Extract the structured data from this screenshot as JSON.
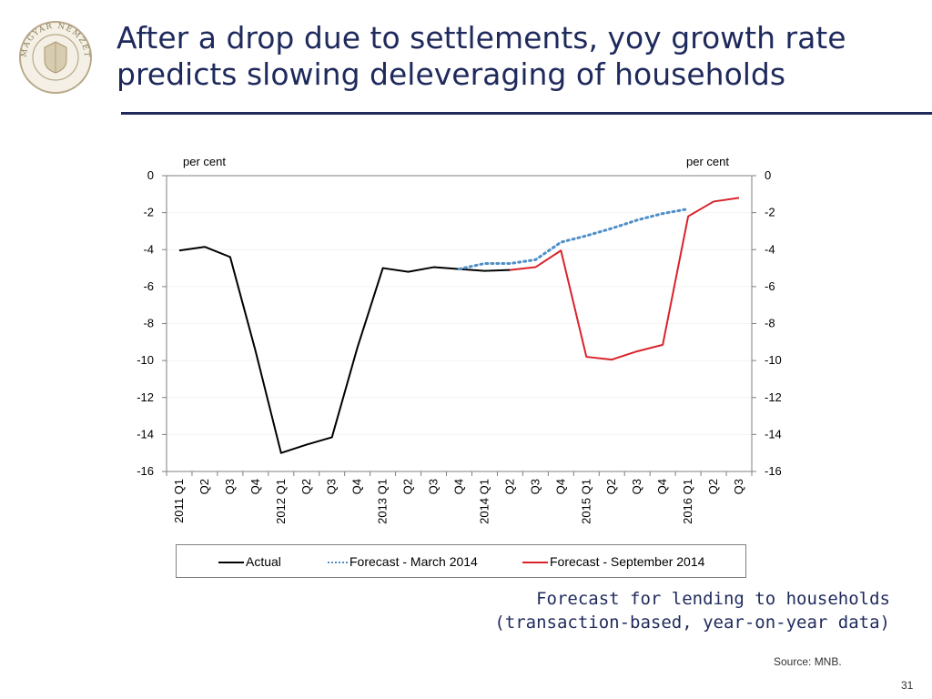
{
  "slide": {
    "title_line1": "After a drop due to settlements, yoy growth rate",
    "title_line2": "predicts slowing deleveraging of households",
    "caption_line1": "Forecast for lending to households",
    "caption_line2": "(transaction-based, year-on-year data)",
    "source": "Source: MNB.",
    "page_number": "31",
    "logo_text": "MAGYAR NEMZETI BANK",
    "colors": {
      "title": "#1f2a5c",
      "actual": "#000000",
      "forecast_march": "#4f8fc8",
      "forecast_september": "#d9232b"
    }
  },
  "chart_data": {
    "type": "line",
    "left_unit": "per cent",
    "right_unit": "per cent",
    "ylim": [
      -16,
      0
    ],
    "yticks": [
      0,
      -2,
      -4,
      -6,
      -8,
      -10,
      -12,
      -14,
      -16
    ],
    "categories": [
      "2011 Q1",
      "Q2",
      "Q3",
      "Q4",
      "2012 Q1",
      "Q2",
      "Q3",
      "Q4",
      "2013 Q1",
      "Q2",
      "Q3",
      "Q4",
      "2014 Q1",
      "Q2",
      "Q3",
      "Q4",
      "2015 Q1",
      "Q2",
      "Q3",
      "Q4",
      "2016 Q1",
      "Q2",
      "Q3"
    ],
    "series": [
      {
        "name": "Actual",
        "style": "solid",
        "color": "#000000",
        "values": [
          -4.05,
          -3.85,
          -4.4,
          -9.5,
          -15.0,
          -14.55,
          -14.15,
          -9.3,
          -5.0,
          -5.2,
          -4.95,
          -5.05,
          -5.15,
          -5.1,
          null,
          null,
          null,
          null,
          null,
          null,
          null,
          null,
          null
        ]
      },
      {
        "name": "Forecast - March 2014",
        "style": "dotted",
        "color": "#4f8fc8",
        "values": [
          null,
          null,
          null,
          null,
          null,
          null,
          null,
          null,
          null,
          null,
          null,
          -5.05,
          -4.75,
          -4.75,
          -4.55,
          -3.6,
          -3.25,
          -2.85,
          -2.4,
          -2.05,
          -1.8,
          null,
          null
        ]
      },
      {
        "name": "Forecast - September 2014",
        "style": "solid",
        "color": "#d9232b",
        "values": [
          null,
          null,
          null,
          null,
          null,
          null,
          null,
          null,
          null,
          null,
          null,
          null,
          null,
          -5.1,
          -4.95,
          -4.05,
          -9.8,
          -9.95,
          -9.5,
          -9.15,
          -2.2,
          -1.4,
          -1.2
        ]
      }
    ]
  }
}
